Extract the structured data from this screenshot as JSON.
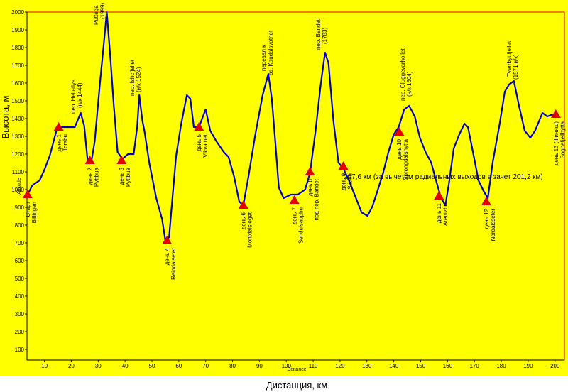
{
  "chart_data": {
    "type": "line",
    "x_label": "Distance",
    "y_label": "Altitude",
    "x_title": "Дистанция, км",
    "y_title": "Высота, м",
    "annotation": "207,6 км (за вычетом радиальных выходов в зачет 201,2 км)",
    "xlim": [
      3.5,
      203.5
    ],
    "ylim": [
      40,
      2000
    ],
    "xticks": [
      10,
      20,
      30,
      40,
      50,
      60,
      70,
      80,
      90,
      100,
      110,
      120,
      130,
      140,
      150,
      160,
      170,
      180,
      190,
      200
    ],
    "yticks": [
      100,
      200,
      300,
      400,
      500,
      600,
      700,
      800,
      900,
      1000,
      1100,
      1200,
      1300,
      1400,
      1500,
      1600,
      1700,
      1800,
      1900,
      2000
    ],
    "x": [
      3.7,
      5.5,
      8.2,
      10,
      12,
      14.8,
      17.4,
      21.3,
      23.5,
      24.8,
      26,
      27.4,
      28.7,
      30.6,
      31.9,
      33.2,
      34.5,
      35.8,
      37.2,
      39,
      41.1,
      43.2,
      44.5,
      45.3,
      46.4,
      47.2,
      49,
      51.6,
      53.8,
      55,
      56.4,
      57.4,
      59,
      60.9,
      63,
      64.3,
      65.6,
      67.5,
      70,
      71.7,
      74,
      76.7,
      78.5,
      80.6,
      82.5,
      84,
      85.9,
      88.5,
      91.2,
      93.3,
      94.6,
      95.9,
      97.2,
      99,
      101.7,
      104.3,
      107,
      108.8,
      110.9,
      112.8,
      114.4,
      115.7,
      117.5,
      119.4,
      121.2,
      123.3,
      125.4,
      128,
      130.2,
      132,
      133.9,
      136,
      138,
      140,
      141.8,
      143.9,
      145.7,
      147.8,
      149.7,
      151.8,
      153.9,
      155.7,
      157.6,
      159.2,
      160.5,
      162.3,
      164.4,
      166.3,
      167.6,
      169.7,
      171.5,
      173.4,
      175,
      176.8,
      179.4,
      181.3,
      182.9,
      184.7,
      186.6,
      188.7,
      190.8,
      192.6,
      195.3,
      197.1,
      199.2
    ],
    "series": [
      {
        "color": "#0000cc",
        "values": [
          972,
          1024,
          1052,
          1112,
          1192,
          1352,
          1352,
          1352,
          1432,
          1360,
          1172,
          1152,
          1272,
          1592,
          1792,
          2000,
          1752,
          1472,
          1212,
          1172,
          1200,
          1200,
          1352,
          1532,
          1392,
          1332,
          1152,
          952,
          832,
          712,
          732,
          912,
          1192,
          1372,
          1532,
          1512,
          1352,
          1352,
          1452,
          1332,
          1272,
          1212,
          1184,
          1072,
          932,
          912,
          1072,
          1312,
          1532,
          1652,
          1512,
          1272,
          1012,
          952,
          972,
          972,
          1000,
          1092,
          1332,
          1592,
          1772,
          1712,
          1392,
          1152,
          1120,
          1052,
          972,
          872,
          852,
          904,
          992,
          1092,
          1212,
          1312,
          1352,
          1452,
          1472,
          1412,
          1292,
          1212,
          1152,
          1052,
          952,
          912,
          1032,
          1232,
          1312,
          1372,
          1352,
          1192,
          1052,
          992,
          952,
          1152,
          1372,
          1552,
          1592,
          1612,
          1472,
          1332,
          1292,
          1332,
          1432,
          1412,
          1424
        ]
      }
    ],
    "marker_color": "#e00000",
    "markers": [
      {
        "x": 3.7,
        "y": 972,
        "label": [
          "Старт",
          "Billingen"
        ]
      },
      {
        "x": 15.3,
        "y": 1352,
        "label": [
          "день 1",
          "Torsbu"
        ]
      },
      {
        "x": 26.9,
        "y": 1164,
        "label": [
          "день 2",
          "Pyttbua"
        ]
      },
      {
        "x": 38.7,
        "y": 1164,
        "label": [
          "день 3",
          "Pyttbua"
        ]
      },
      {
        "x": 55.6,
        "y": 712,
        "label": [
          "день 4",
          "Reindalseter"
        ]
      },
      {
        "x": 67.5,
        "y": 1352,
        "label": [
          "день 5",
          "Vikvatnet"
        ]
      },
      {
        "x": 84,
        "y": 912,
        "label": [
          "день 6",
          "Montdalsleget"
        ]
      },
      {
        "x": 103,
        "y": 940,
        "label": [
          "день 7",
          "Sendulsaupbu"
        ]
      },
      {
        "x": 108.8,
        "y": 1100,
        "label": [
          "день 8",
          "под пер. Bandet"
        ]
      },
      {
        "x": 121.2,
        "y": 1132,
        "label": [
          "день 9",
          "Stiaen"
        ]
      },
      {
        "x": 142,
        "y": 1324,
        "label": [
          "день 10",
          "Sprongdalshytta"
        ]
      },
      {
        "x": 156.8,
        "y": 964,
        "label": [
          "день 11",
          "Arentzbu"
        ]
      },
      {
        "x": 174.4,
        "y": 932,
        "label": [
          "день 12",
          "Nordalsseter"
        ]
      },
      {
        "x": 200.3,
        "y": 1424,
        "label": [
          "день 13 (Финиш)",
          "Sognefjellhytta"
        ]
      }
    ],
    "peak_labels": [
      [
        "Puttega",
        "(1999)"
      ],
      [
        "пер. Hellaflya",
        "(н/к 1444)"
      ],
      [
        "пер. Ishcfjellet",
        "(н/к 1524)"
      ],
      [
        "перевал к",
        "оз. Kaudalsvatnet"
      ],
      [
        "пер. Bandet",
        "(1783)"
      ],
      [
        "пер. Gluggevarhollet",
        "(н/к 1604)"
      ],
      [
        "Tverrbyttfjellet",
        "(1571 н/к)"
      ]
    ]
  }
}
